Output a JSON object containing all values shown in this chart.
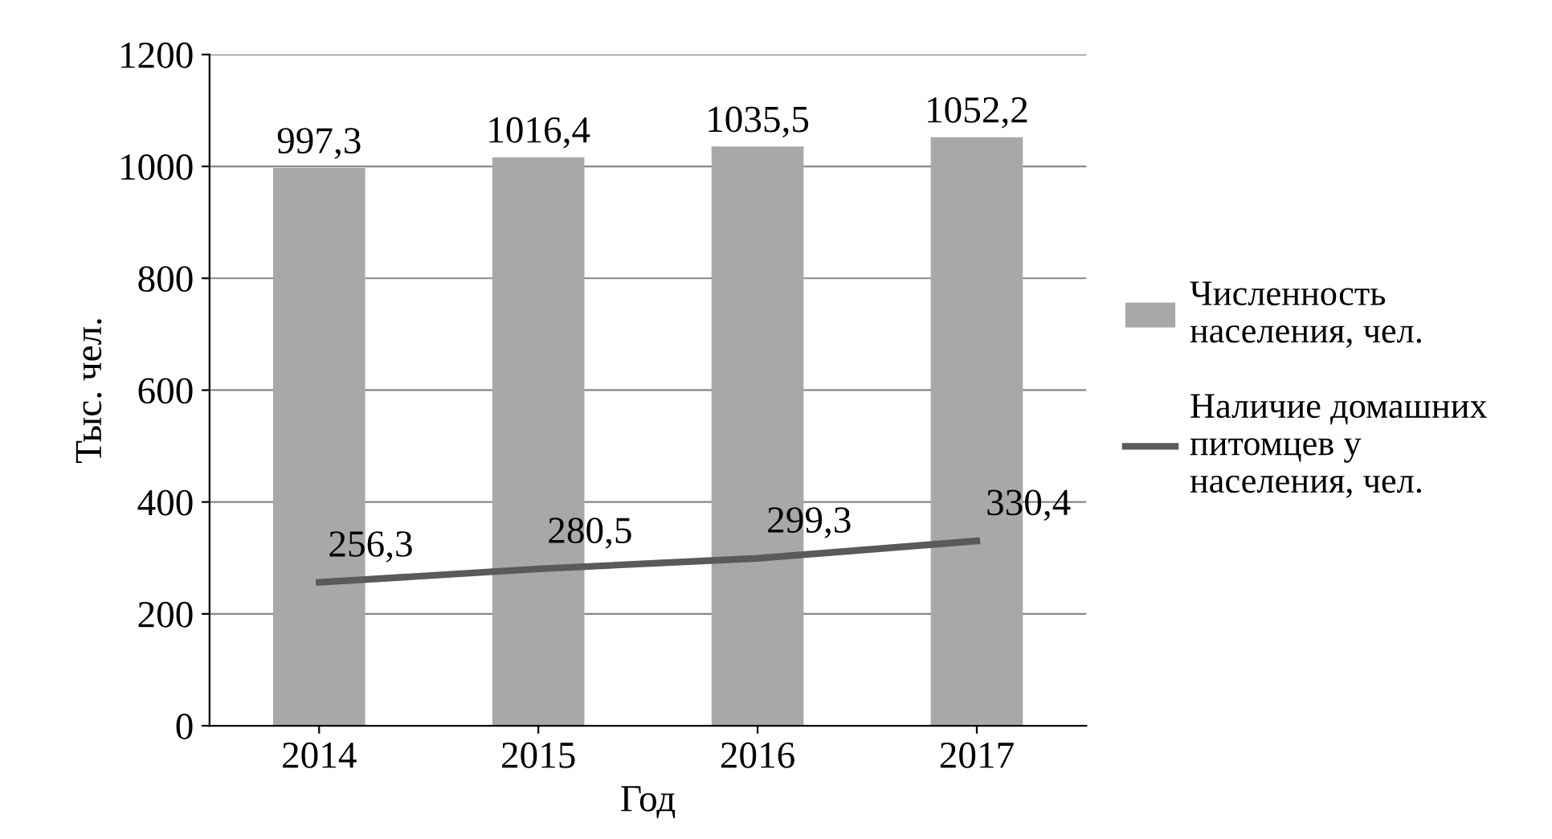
{
  "chart_data": {
    "type": "bar",
    "xlabel": "Год",
    "ylabel": "Тыс. чел.",
    "categories": [
      "2014",
      "2015",
      "2016",
      "2017"
    ],
    "series": [
      {
        "name": "Численность\nнаселения, чел.",
        "color": "#a8a8a8",
        "values": [
          997.3,
          1016.4,
          1035.5,
          1052.2
        ],
        "value_labels": [
          "997,3",
          "1016,4",
          "1035,5",
          "1052,2"
        ]
      },
      {
        "name": "Наличие домашних\nпитомцев у\nнаселения, чел.",
        "type": "line",
        "color": "#5a5a5a",
        "values": [
          256.3,
          280.5,
          299.3,
          330.4
        ],
        "value_labels": [
          "256,3",
          "280,5",
          "299,3",
          "330,4"
        ]
      }
    ],
    "ylim": [
      0,
      1200
    ],
    "yticks": [
      0,
      200,
      400,
      600,
      800,
      1000,
      1200
    ],
    "grid": "y",
    "legend": "right"
  }
}
